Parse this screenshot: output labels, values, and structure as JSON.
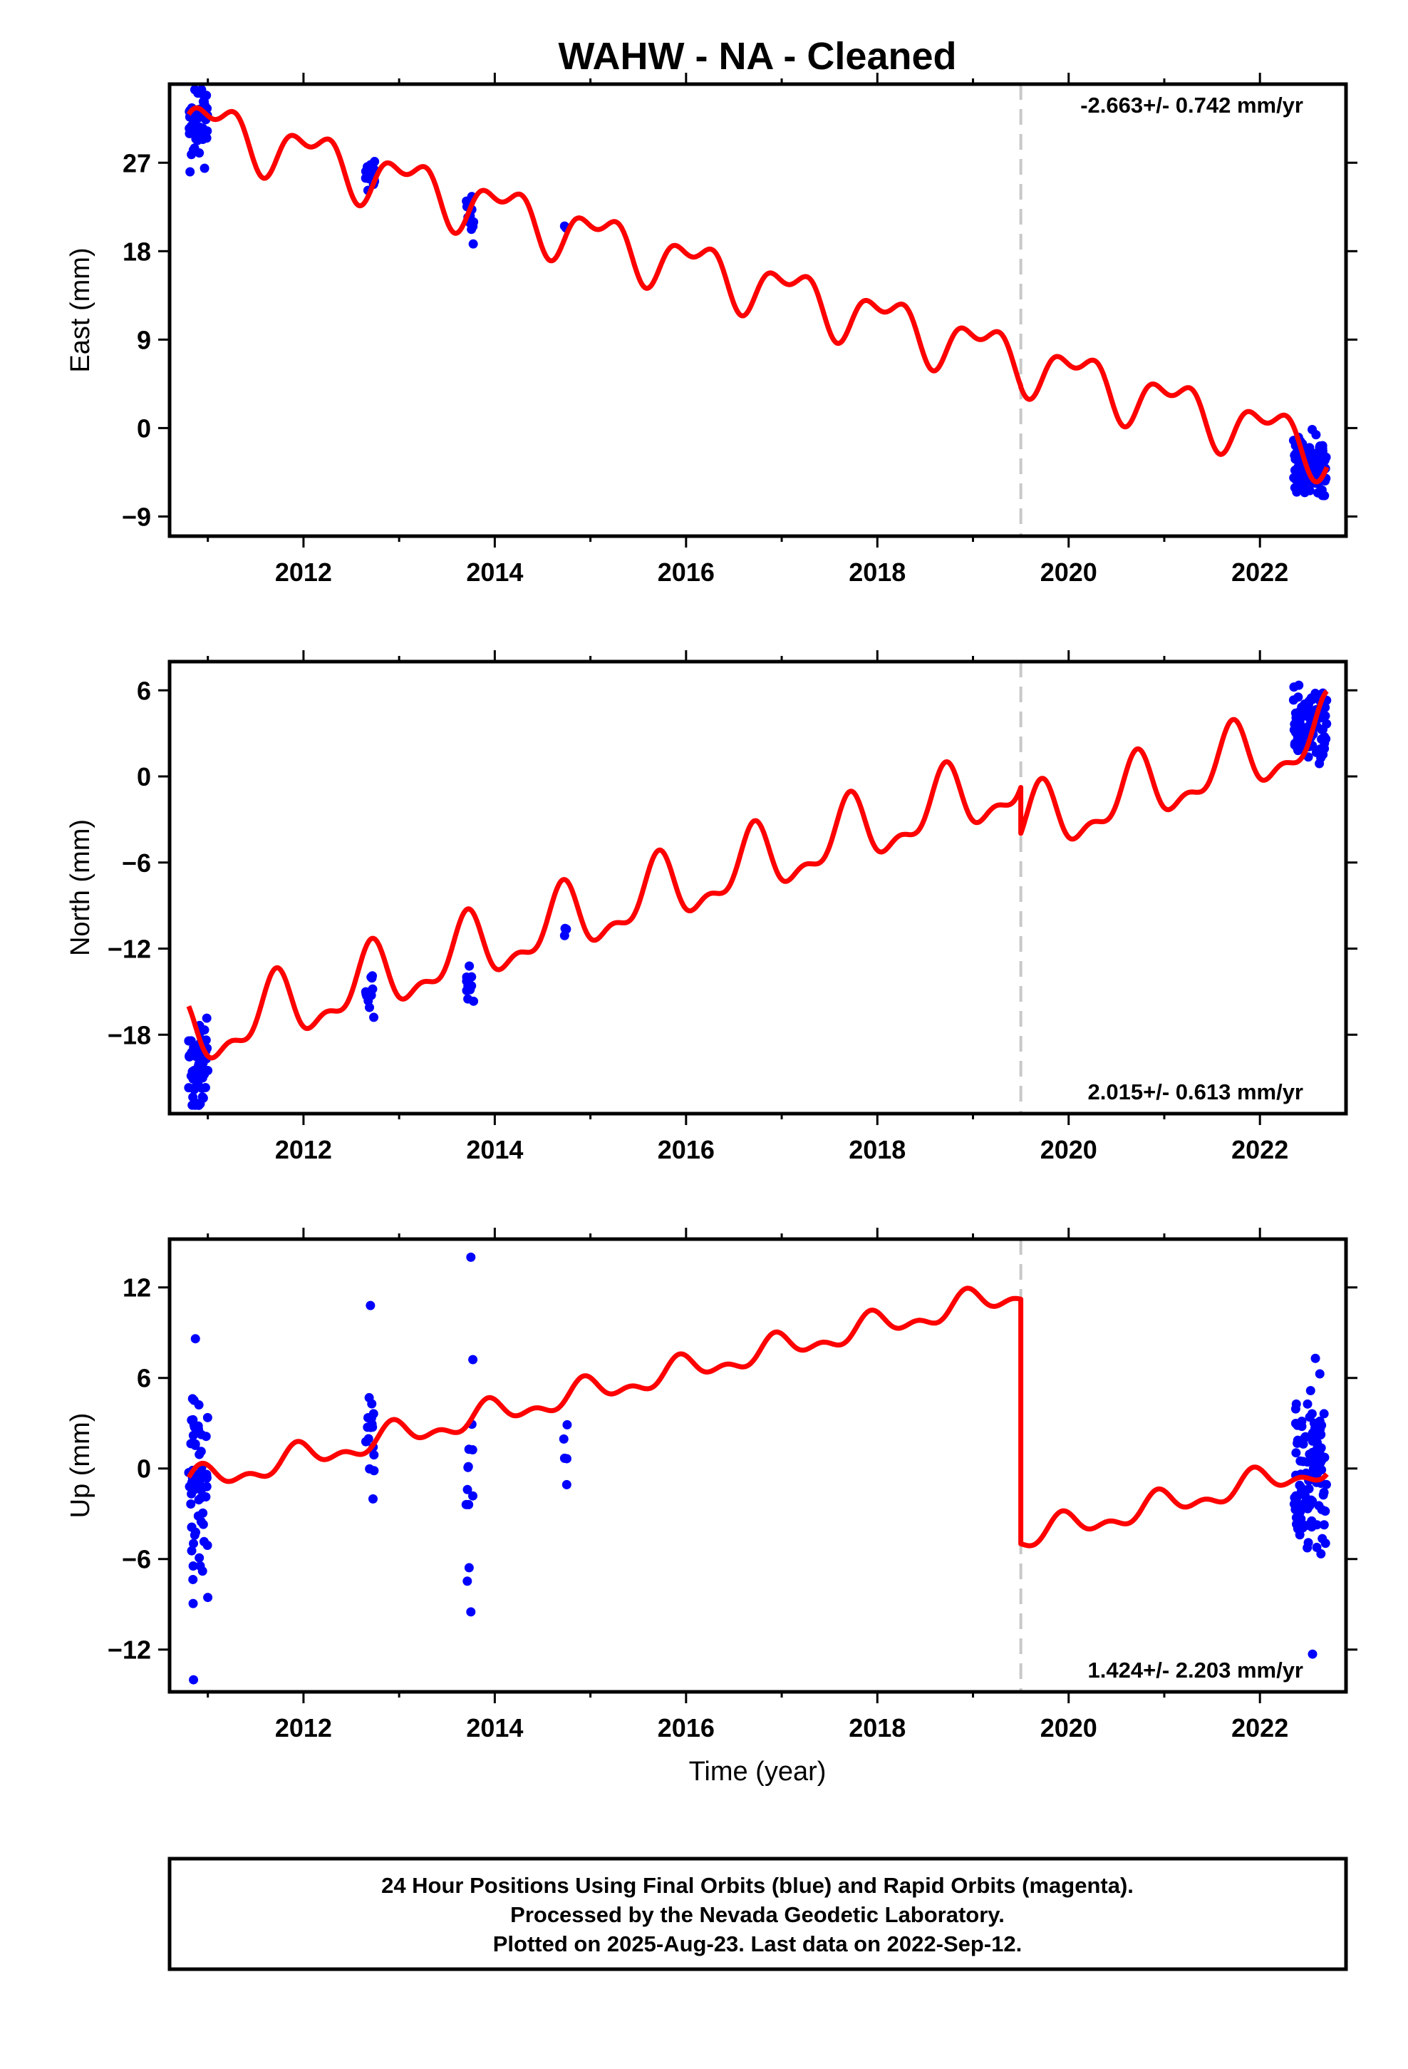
{
  "title": "WAHW  - NA - Cleaned",
  "xlabel": "Time (year)",
  "colors": {
    "final_orbits": "#0000ff",
    "model": "#ff0000",
    "event_line": "#c8c8c8",
    "frame": "#000000"
  },
  "chart_data": [
    {
      "type": "scatter",
      "component": "East",
      "ylabel": "East (mm)",
      "xlim": [
        2010.6,
        2022.9
      ],
      "ylim": [
        -11,
        35
      ],
      "yticks": [
        -9,
        0,
        9,
        18,
        27
      ],
      "xticks": [
        2012,
        2014,
        2016,
        2018,
        2020,
        2022
      ],
      "rate_label": "-2.663+/- 0.742 mm/yr",
      "rate_position": "top-right",
      "event_x": 2019.5,
      "model": {
        "name": "model",
        "segments": [
          {
            "x_start": 2010.8,
            "x_end": 2019.5,
            "intercept": 31.3,
            "slope": -2.8,
            "annual_amp": 2.3,
            "annual_phase": 0.15,
            "semi_amp": 1.4,
            "semi_phase": 0.3
          },
          {
            "x_start": 2019.5,
            "x_end": 2022.7,
            "intercept": 31.2,
            "slope": -2.8,
            "annual_amp": 2.3,
            "annual_phase": 0.15,
            "semi_amp": 1.4,
            "semi_phase": 0.3
          }
        ]
      },
      "clusters": [
        {
          "x_start": 2010.8,
          "x_end": 2011.0,
          "center": 31.5,
          "spread": 3.5,
          "count": 60,
          "seed": 11
        },
        {
          "x_start": 2012.65,
          "x_end": 2012.75,
          "center": 26.0,
          "spread": 1.6,
          "count": 16,
          "seed": 12
        },
        {
          "x_start": 2013.7,
          "x_end": 2013.78,
          "center": 22.0,
          "spread": 2.8,
          "count": 12,
          "seed": 13
        },
        {
          "x_start": 2014.72,
          "x_end": 2014.76,
          "center": 20.8,
          "spread": 0.6,
          "count": 3,
          "seed": 14
        },
        {
          "x_start": 2022.35,
          "x_end": 2022.7,
          "center": -3.8,
          "spread": 2.6,
          "count": 110,
          "seed": 15
        }
      ]
    },
    {
      "type": "scatter",
      "component": "North",
      "ylabel": "North (mm)",
      "xlim": [
        2010.6,
        2022.9
      ],
      "ylim": [
        -23.5,
        8
      ],
      "yticks": [
        -18,
        -12,
        -6,
        0,
        6
      ],
      "xticks": [
        2012,
        2014,
        2016,
        2018,
        2020,
        2022
      ],
      "rate_label": "2.015+/- 0.613 mm/yr",
      "rate_position": "bottom-right",
      "event_x": 2019.5,
      "model": {
        "name": "model",
        "segments": [
          {
            "x_start": 2010.8,
            "x_end": 2019.5,
            "intercept": -18.3,
            "slope": 2.05,
            "annual_amp": 2.1,
            "annual_phase": 0.55,
            "semi_amp": 1.0,
            "semi_phase": 0.4
          },
          {
            "x_start": 2019.5,
            "x_end": 2022.7,
            "intercept": -21.5,
            "slope": 2.05,
            "annual_amp": 2.1,
            "annual_phase": 0.55,
            "semi_amp": 1.0,
            "semi_phase": 0.4
          }
        ]
      },
      "clusters": [
        {
          "x_start": 2010.8,
          "x_end": 2011.0,
          "center": -19.8,
          "spread": 2.5,
          "count": 60,
          "seed": 21
        },
        {
          "x_start": 2012.65,
          "x_end": 2012.75,
          "center": -15.5,
          "spread": 1.5,
          "count": 16,
          "seed": 22
        },
        {
          "x_start": 2013.7,
          "x_end": 2013.78,
          "center": -14.5,
          "spread": 1.6,
          "count": 12,
          "seed": 23
        },
        {
          "x_start": 2014.72,
          "x_end": 2014.76,
          "center": -10.9,
          "spread": 0.7,
          "count": 3,
          "seed": 24
        },
        {
          "x_start": 2022.35,
          "x_end": 2022.7,
          "center": 3.5,
          "spread": 2.0,
          "count": 110,
          "seed": 25
        }
      ]
    },
    {
      "type": "scatter",
      "component": "Up",
      "ylabel": "Up (mm)",
      "xlim": [
        2010.6,
        2022.9
      ],
      "ylim": [
        -14.8,
        15.2
      ],
      "yticks": [
        -12,
        -6,
        0,
        6,
        12
      ],
      "xticks": [
        2012,
        2014,
        2016,
        2018,
        2020,
        2022
      ],
      "rate_label": "1.424+/- 2.203 mm/yr",
      "rate_position": "bottom-right",
      "event_x": 2019.5,
      "model": {
        "name": "model",
        "segments": [
          {
            "x_start": 2010.8,
            "x_end": 2019.5,
            "intercept": -1.0,
            "slope": 1.45,
            "annual_amp": 0.7,
            "annual_phase": 0.3,
            "semi_amp": 0.45,
            "semi_phase": 0.2
          },
          {
            "x_start": 2019.5,
            "x_end": 2022.7,
            "intercept": -17.2,
            "slope": 1.45,
            "annual_amp": 0.7,
            "annual_phase": 0.3,
            "semi_amp": 0.45,
            "semi_phase": 0.2
          }
        ]
      },
      "clusters": [
        {
          "x_start": 2010.8,
          "x_end": 2011.0,
          "center": -1.5,
          "spread": 5.5,
          "count": 60,
          "seed": 31
        },
        {
          "x_start": 2012.65,
          "x_end": 2012.75,
          "center": 2.0,
          "spread": 4.5,
          "count": 16,
          "seed": 32
        },
        {
          "x_start": 2013.7,
          "x_end": 2013.78,
          "center": -0.5,
          "spread": 6.5,
          "count": 12,
          "seed": 33
        },
        {
          "x_start": 2014.72,
          "x_end": 2014.76,
          "center": 1.0,
          "spread": 2.5,
          "count": 5,
          "seed": 34
        },
        {
          "x_start": 2022.35,
          "x_end": 2022.7,
          "center": -0.5,
          "spread": 4.5,
          "count": 110,
          "seed": 35
        }
      ],
      "points": [
        {
          "x": 2010.85,
          "y": -14.0
        },
        {
          "x": 2010.87,
          "y": 8.6
        },
        {
          "x": 2012.7,
          "y": 10.8
        },
        {
          "x": 2013.75,
          "y": 14.0
        },
        {
          "x": 2013.75,
          "y": -9.5
        },
        {
          "x": 2022.55,
          "y": -12.3
        },
        {
          "x": 2022.58,
          "y": 7.3
        }
      ]
    }
  ],
  "footer": {
    "lines": [
      "24 Hour Positions Using Final Orbits (blue) and Rapid Orbits (magenta).",
      "Processed by the Nevada Geodetic Laboratory.",
      "Plotted on 2025-Aug-23. Last data on 2022-Sep-12."
    ]
  }
}
